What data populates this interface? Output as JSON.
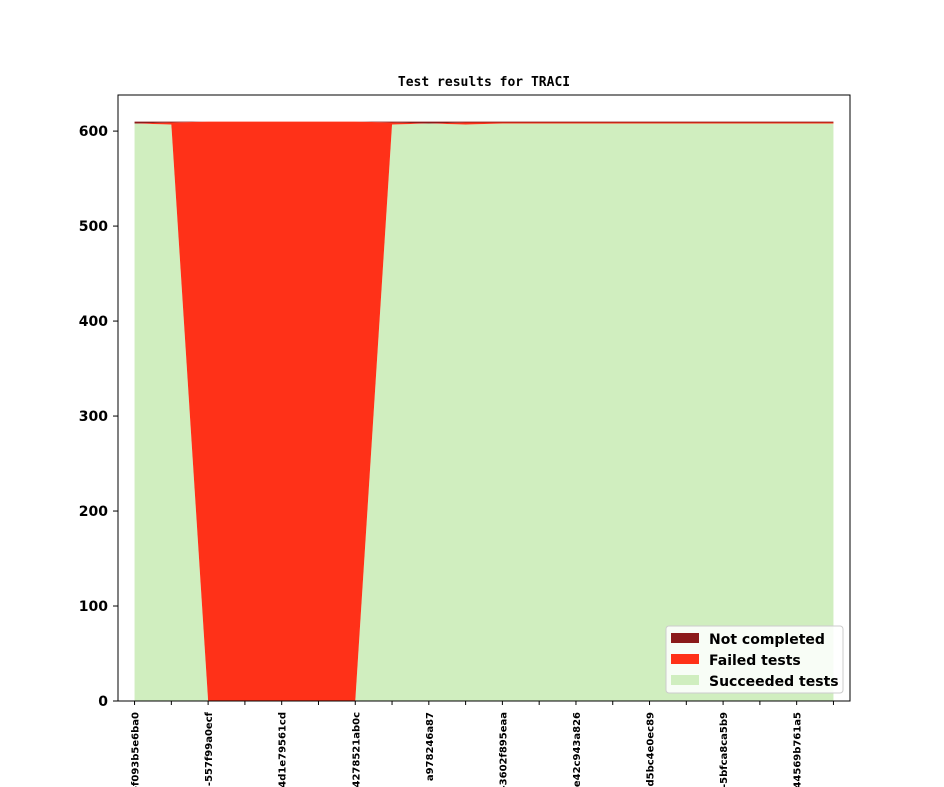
{
  "chart_data": {
    "type": "area",
    "stacked": true,
    "title": "Test results for TRACI",
    "xlabel": "",
    "ylabel": "",
    "ylim": [
      0,
      638
    ],
    "yticks": [
      0,
      100,
      200,
      300,
      400,
      500,
      600
    ],
    "xlim": [
      -0.45,
      19.45
    ],
    "xtick_labels": [
      "-f093b5e6ba0",
      "-557f99a0ecf",
      "4d1e79561cd",
      "4278521ab0c",
      "a978246a87",
      "-3602f895eaa",
      "e42c943a826",
      "d5bc4e0ec89",
      "-5bfca8ca5b9",
      "44569b761a5"
    ],
    "xtick_positions": [
      0,
      2,
      4,
      6,
      8,
      10,
      12,
      14,
      16,
      18
    ],
    "x": [
      0,
      1,
      2,
      3,
      4,
      5,
      6,
      7,
      8,
      9,
      10,
      11,
      12,
      13,
      14,
      15,
      16,
      17,
      18,
      19
    ],
    "series": [
      {
        "name": "Succeeded tests",
        "color": "#d0eebf",
        "values": [
          608,
          607,
          0,
          0,
          0,
          0,
          0,
          607,
          608,
          607,
          608,
          608,
          608,
          608,
          608,
          608,
          608,
          608,
          608,
          608
        ]
      },
      {
        "name": "Failed tests",
        "color": "#ff3118",
        "values": [
          0,
          2,
          610,
          610,
          610,
          610,
          610,
          2,
          0,
          2,
          1,
          1,
          1,
          1,
          1,
          1,
          1,
          1,
          1,
          1
        ]
      },
      {
        "name": "Not completed",
        "color": "#8b1a1a",
        "values": [
          2,
          1,
          0,
          0,
          0,
          0,
          0,
          1,
          2,
          1,
          1,
          1,
          1,
          1,
          1,
          1,
          1,
          1,
          1,
          1
        ]
      }
    ],
    "legend": {
      "position": "lower-right",
      "order": [
        "Not completed",
        "Failed tests",
        "Succeeded tests"
      ]
    },
    "grid": false
  }
}
